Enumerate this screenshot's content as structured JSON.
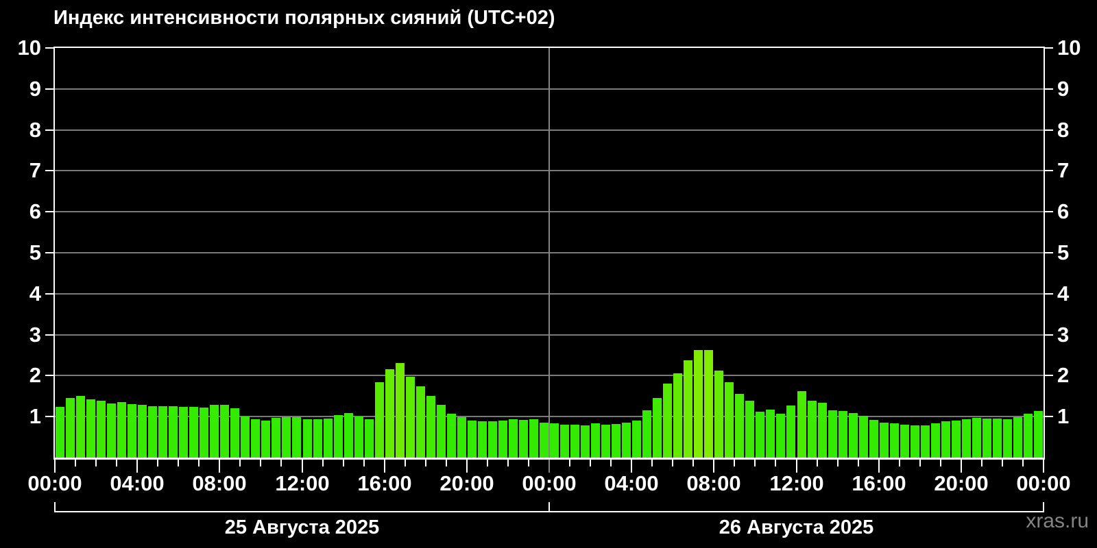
{
  "title": "Индекс интенсивности полярных сияний (UTC+02)",
  "watermark": "xras.ru",
  "colors": {
    "background": "#000000",
    "bar_green": "#33e600",
    "bar_peak_yellow_green": "#7ce800",
    "grid": "#7a7a7a",
    "day_separator": "#858585",
    "axis": "#ffffff",
    "text": "#ffffff",
    "watermark_text": "#848484"
  },
  "chart_data": {
    "type": "bar",
    "title": "Индекс интенсивности полярных сияний (UTC+02)",
    "ylim": [
      0,
      10
    ],
    "yticks": [
      1,
      2,
      3,
      4,
      5,
      6,
      7,
      8,
      9,
      10
    ],
    "grid": true,
    "bar_interval_minutes": 30,
    "x_hours_total": 48,
    "x_tick_every_hours": 1,
    "x_label_every_hours": 4,
    "x_tick_labels": [
      "00:00",
      "04:00",
      "08:00",
      "12:00",
      "16:00",
      "20:00",
      "00:00",
      "04:00",
      "08:00",
      "12:00",
      "16:00",
      "20:00",
      "00:00"
    ],
    "days": [
      {
        "date_label": "25 Августа 2025",
        "values": [
          1.24,
          1.46,
          1.51,
          1.42,
          1.38,
          1.32,
          1.35,
          1.31,
          1.28,
          1.25,
          1.25,
          1.25,
          1.24,
          1.24,
          1.22,
          1.28,
          1.28,
          1.21,
          1.01,
          0.94,
          0.9,
          0.97,
          0.98,
          0.98,
          0.94,
          0.94,
          0.96,
          1.04,
          1.09,
          1.0,
          0.94,
          1.84,
          2.16,
          2.31,
          1.97,
          1.74,
          1.51,
          1.29,
          1.07,
          0.98,
          0.91,
          0.89,
          0.88,
          0.9,
          0.93,
          0.92,
          0.93,
          0.85
        ]
      },
      {
        "date_label": "26 Августа 2025",
        "values": [
          0.84,
          0.81,
          0.8,
          0.78,
          0.84,
          0.8,
          0.82,
          0.86,
          0.9,
          1.16,
          1.45,
          1.81,
          2.06,
          2.38,
          2.63,
          2.63,
          2.13,
          1.84,
          1.55,
          1.38,
          1.12,
          1.17,
          1.07,
          1.27,
          1.62,
          1.39,
          1.33,
          1.15,
          1.13,
          1.08,
          1.02,
          0.92,
          0.86,
          0.84,
          0.8,
          0.78,
          0.79,
          0.83,
          0.89,
          0.91,
          0.93,
          0.97,
          0.95,
          0.96,
          0.93,
          0.98,
          1.07,
          1.13
        ]
      }
    ],
    "legend_position": "none"
  }
}
